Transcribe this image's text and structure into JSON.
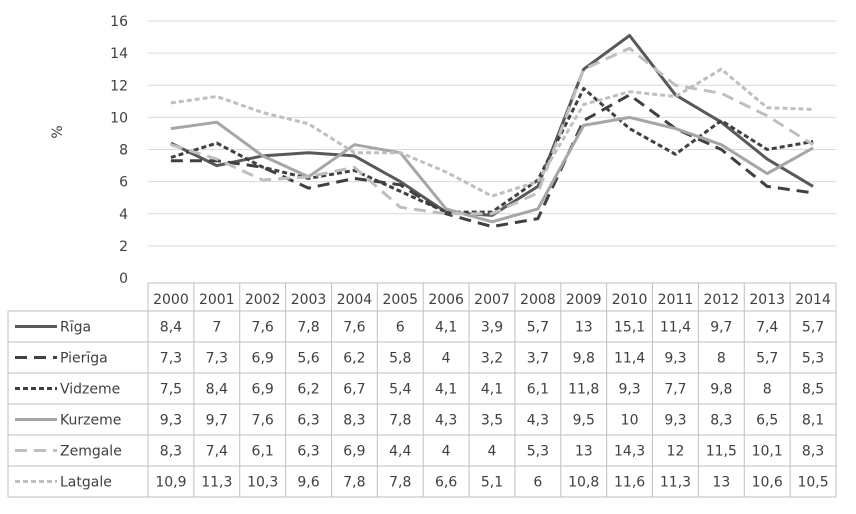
{
  "chart_data": {
    "type": "line",
    "title": "",
    "xlabel": "",
    "ylabel": "%",
    "ylim": [
      0,
      16
    ],
    "yticks": [
      "0",
      "2",
      "4",
      "6",
      "8",
      "10",
      "12",
      "14",
      "16"
    ],
    "grid": "horizontal",
    "legend": "data table below chart",
    "categories": [
      "2000",
      "2001",
      "2002",
      "2003",
      "2004",
      "2005",
      "2006",
      "2007",
      "2008",
      "2009",
      "2010",
      "2011",
      "2012",
      "2013",
      "2014"
    ],
    "series": [
      {
        "name": "Rīga",
        "color": "#595959",
        "dash": "solid",
        "width": 3,
        "values": [
          8.4,
          7,
          7.6,
          7.8,
          7.6,
          6,
          4.1,
          3.9,
          5.7,
          13,
          15.1,
          11.4,
          9.7,
          7.4,
          5.7
        ],
        "labels": [
          "8,4",
          "7",
          "7,6",
          "7,8",
          "7,6",
          "6",
          "4,1",
          "3,9",
          "5,7",
          "13",
          "15,1",
          "11,4",
          "9,7",
          "7,4",
          "5,7"
        ]
      },
      {
        "name": "Pierīga",
        "color": "#404040",
        "dash": "long-dash",
        "width": 3,
        "values": [
          7.3,
          7.3,
          6.9,
          5.6,
          6.2,
          5.8,
          4,
          3.2,
          3.7,
          9.8,
          11.4,
          9.3,
          8,
          5.7,
          5.3
        ],
        "labels": [
          "7,3",
          "7,3",
          "6,9",
          "5,6",
          "6,2",
          "5,8",
          "4",
          "3,2",
          "3,7",
          "9,8",
          "11,4",
          "9,3",
          "8",
          "5,7",
          "5,3"
        ]
      },
      {
        "name": "Vidzeme",
        "color": "#404040",
        "dash": "short-dash",
        "width": 3,
        "values": [
          7.5,
          8.4,
          6.9,
          6.2,
          6.7,
          5.4,
          4.1,
          4.1,
          6.1,
          11.8,
          9.3,
          7.7,
          9.8,
          8,
          8.5
        ],
        "labels": [
          "7,5",
          "8,4",
          "6,9",
          "6,2",
          "6,7",
          "5,4",
          "4,1",
          "4,1",
          "6,1",
          "11,8",
          "9,3",
          "7,7",
          "9,8",
          "8",
          "8,5"
        ]
      },
      {
        "name": "Kurzeme",
        "color": "#a6a6a6",
        "dash": "solid",
        "width": 3,
        "values": [
          9.3,
          9.7,
          7.6,
          6.3,
          8.3,
          7.8,
          4.3,
          3.5,
          4.3,
          9.5,
          10,
          9.3,
          8.3,
          6.5,
          8.1
        ],
        "labels": [
          "9,3",
          "9,7",
          "7,6",
          "6,3",
          "8,3",
          "7,8",
          "4,3",
          "3,5",
          "4,3",
          "9,5",
          "10",
          "9,3",
          "8,3",
          "6,5",
          "8,1"
        ]
      },
      {
        "name": "Zemgale",
        "color": "#bfbfbf",
        "dash": "long-dash",
        "width": 3,
        "values": [
          8.3,
          7.4,
          6.1,
          6.3,
          6.9,
          4.4,
          4,
          4,
          5.3,
          13,
          14.3,
          12,
          11.5,
          10.1,
          8.3
        ],
        "labels": [
          "8,3",
          "7,4",
          "6,1",
          "6,3",
          "6,9",
          "4,4",
          "4",
          "4",
          "5,3",
          "13",
          "14,3",
          "12",
          "11,5",
          "10,1",
          "8,3"
        ]
      },
      {
        "name": "Latgale",
        "color": "#bfbfbf",
        "dash": "short-dash",
        "width": 3,
        "values": [
          10.9,
          11.3,
          10.3,
          9.6,
          7.8,
          7.8,
          6.6,
          5.1,
          6,
          10.8,
          11.6,
          11.3,
          13,
          10.6,
          10.5
        ],
        "labels": [
          "10,9",
          "11,3",
          "10,3",
          "9,6",
          "7,8",
          "7,8",
          "6,6",
          "5,1",
          "6",
          "10,8",
          "11,6",
          "11,3",
          "13",
          "10,6",
          "10,5"
        ]
      }
    ]
  }
}
